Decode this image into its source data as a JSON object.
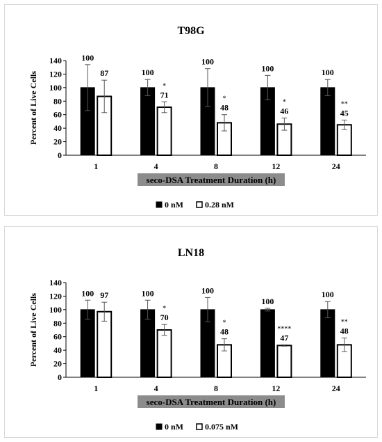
{
  "chart_data": [
    {
      "type": "bar",
      "title": "T98G",
      "xlabel": "seco-DSA Treatment Duration (h)",
      "ylabel": "Percent of Live Cells",
      "ylim": [
        0,
        140
      ],
      "yticks": [
        0,
        20,
        40,
        60,
        80,
        100,
        120,
        140
      ],
      "categories": [
        "1",
        "4",
        "8",
        "12",
        "24"
      ],
      "legend_position": "bottom",
      "series": [
        {
          "name": "0 nM",
          "color": "#000000",
          "fill": "solid",
          "values": [
            100,
            100,
            100,
            100,
            100
          ],
          "errors": [
            34,
            12,
            28,
            18,
            12
          ],
          "value_labels": [
            "100",
            "100",
            "100",
            "100",
            "100"
          ],
          "significance": [
            "",
            "",
            "",
            "",
            ""
          ]
        },
        {
          "name": "0.28 nM",
          "color": "#ffffff",
          "fill": "outline",
          "values": [
            87,
            71,
            48,
            46,
            45
          ],
          "errors": [
            24,
            8,
            12,
            9,
            7
          ],
          "value_labels": [
            "87",
            "71",
            "48",
            "46",
            "45"
          ],
          "significance": [
            "",
            "*",
            "*",
            "*",
            "**"
          ]
        }
      ]
    },
    {
      "type": "bar",
      "title": "LN18",
      "xlabel": "seco-DSA Treatment Duration (h)",
      "ylabel": "Percent of Live Cells",
      "ylim": [
        0,
        140
      ],
      "yticks": [
        0,
        20,
        40,
        60,
        80,
        100,
        120,
        140
      ],
      "categories": [
        "1",
        "4",
        "8",
        "12",
        "24"
      ],
      "legend_position": "bottom",
      "series": [
        {
          "name": "0 nM",
          "color": "#000000",
          "fill": "solid",
          "values": [
            100,
            100,
            100,
            100,
            100
          ],
          "errors": [
            14,
            14,
            18,
            2,
            12
          ],
          "value_labels": [
            "100",
            "100",
            "100",
            "100",
            "100"
          ],
          "significance": [
            "",
            "",
            "",
            "",
            ""
          ]
        },
        {
          "name": "0.075 nM",
          "color": "#ffffff",
          "fill": "outline",
          "values": [
            97,
            70,
            48,
            47,
            48
          ],
          "errors": [
            14,
            8,
            9,
            1,
            10
          ],
          "value_labels": [
            "97",
            "70",
            "48",
            "47",
            "48"
          ],
          "significance": [
            "",
            "*",
            "*",
            "****",
            "**"
          ]
        }
      ]
    }
  ]
}
